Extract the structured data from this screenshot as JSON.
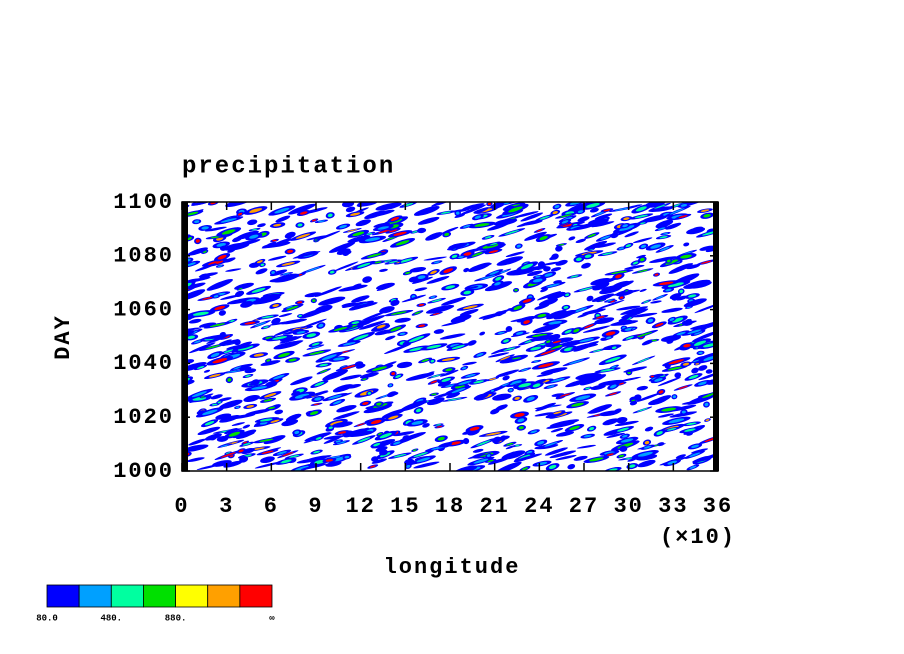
{
  "chart_data": {
    "type": "contour",
    "title": "precipitation",
    "xlabel": "longitude",
    "ylabel": "DAY",
    "x_multiplier": "(×10)",
    "xlim": [
      0,
      36
    ],
    "xticks": [
      0,
      3,
      6,
      9,
      12,
      15,
      18,
      21,
      24,
      27,
      30,
      33,
      36
    ],
    "ylim": [
      1000,
      1100
    ],
    "yticks": [
      1000,
      1020,
      1040,
      1060,
      1080,
      1100
    ],
    "colorbar": {
      "colors": [
        "#0000ff",
        "#00a0ff",
        "#00ffa0",
        "#00e000",
        "#ffff00",
        "#ffa000",
        "#ff0000"
      ],
      "levels": [
        "80.0",
        null,
        "480.",
        null,
        "880.",
        null,
        null,
        "∞"
      ]
    }
  }
}
